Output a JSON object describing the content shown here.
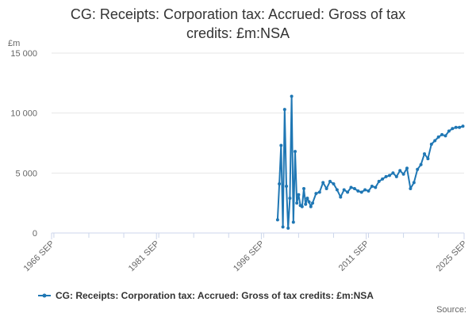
{
  "chart_data": {
    "type": "line",
    "title": "CG: Receipts: Corporation tax: Accrued: Gross of tax credits: £m:NSA",
    "title_lines": [
      "CG: Receipts: Corporation tax: Accrued: Gross of tax",
      "credits: £m:NSA"
    ],
    "ylabel": "£m",
    "ylim": [
      0,
      15000
    ],
    "yticks": [
      0,
      5000,
      10000,
      15000
    ],
    "ytick_labels": [
      "0",
      "5 000",
      "10 000",
      "15 000"
    ],
    "xlim": [
      1966.67,
      2025.67
    ],
    "xticks": [
      1966.67,
      1981.67,
      1996.67,
      2011.67,
      2025.67
    ],
    "xtick_labels": [
      "1966 SEP",
      "1981 SEP",
      "1996 SEP",
      "2011 SEP",
      "2025 SEP"
    ],
    "grid": true,
    "legend_position": "bottom-center",
    "source": "Source:",
    "series": [
      {
        "name": "CG: Receipts: Corporation tax: Accrued: Gross of tax credits: £m:NSA",
        "color": "#1f77b4",
        "x": [
          1999.0,
          1999.25,
          1999.5,
          1999.75,
          2000.0,
          2000.25,
          2000.5,
          2000.75,
          2001.0,
          2001.25,
          2001.5,
          2001.75,
          2002.0,
          2002.25,
          2002.5,
          2002.75,
          2003.0,
          2003.25,
          2003.5,
          2003.75,
          2004.0,
          2004.5,
          2005.0,
          2005.5,
          2006.0,
          2006.5,
          2007.0,
          2007.5,
          2008.0,
          2008.5,
          2009.0,
          2009.5,
          2010.0,
          2010.5,
          2011.0,
          2011.5,
          2012.0,
          2012.5,
          2013.0,
          2013.5,
          2014.0,
          2014.5,
          2015.0,
          2015.5,
          2016.0,
          2016.5,
          2017.0,
          2017.5,
          2018.0,
          2018.5,
          2019.0,
          2019.5,
          2020.0,
          2020.5,
          2021.0,
          2021.5,
          2022.0,
          2022.5,
          2023.0,
          2023.5,
          2024.0,
          2024.5,
          2025.0,
          2025.5
        ],
        "values": [
          1100,
          4100,
          7300,
          500,
          10300,
          3900,
          400,
          2900,
          11400,
          900,
          6800,
          2500,
          3200,
          2300,
          2200,
          3700,
          2400,
          2900,
          2600,
          2200,
          2500,
          3300,
          3400,
          4200,
          3700,
          4300,
          4100,
          3600,
          3000,
          3600,
          3400,
          3800,
          3700,
          3500,
          3400,
          3600,
          3500,
          3900,
          3800,
          4300,
          4500,
          4700,
          4800,
          5000,
          4700,
          5200,
          4900,
          5400,
          3700,
          4200,
          5300,
          5700,
          6600,
          6200,
          7400,
          7700,
          8000,
          8200,
          8100,
          8500,
          8700,
          8800,
          8800,
          8900
        ]
      }
    ]
  }
}
